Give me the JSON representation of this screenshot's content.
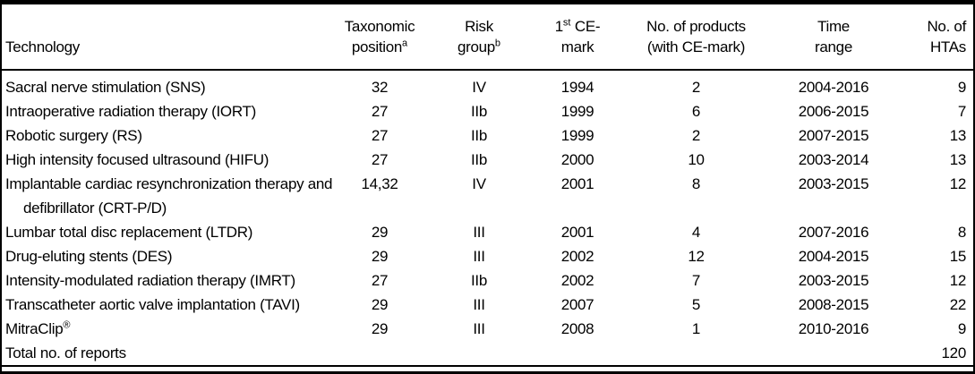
{
  "table": {
    "header": {
      "technology": "Technology",
      "taxonomic_line1": "Taxonomic",
      "taxonomic_line2": "position",
      "taxonomic_sup": "a",
      "risk_line1": "Risk",
      "risk_line2": "group",
      "risk_sup": "b",
      "ce_num": "1",
      "ce_sup": "st",
      "ce_line1_rest": " CE-",
      "ce_line2": "mark",
      "products_line1": "No. of products",
      "products_line2": "(with CE-mark)",
      "time_line1": "Time",
      "time_line2": "range",
      "htas_line1": "No. of",
      "htas_line2": "HTAs"
    },
    "rows": [
      {
        "technology": "Sacral nerve stimulation (SNS)",
        "taxonomic_position": "32",
        "risk_group": "IV",
        "first_ce_mark": "1994",
        "products": "2",
        "time_range": "2004-2016",
        "htas": "9"
      },
      {
        "technology": "Intraoperative radiation therapy (IORT)",
        "taxonomic_position": "27",
        "risk_group": "IIb",
        "first_ce_mark": "1999",
        "products": "6",
        "time_range": "2006-2015",
        "htas": "7"
      },
      {
        "technology": "Robotic surgery (RS)",
        "taxonomic_position": "27",
        "risk_group": "IIb",
        "first_ce_mark": "1999",
        "products": "2",
        "time_range": "2007-2015",
        "htas": "13"
      },
      {
        "technology": "High intensity focused ultrasound (HIFU)",
        "taxonomic_position": "27",
        "risk_group": "IIb",
        "first_ce_mark": "2000",
        "products": "10",
        "time_range": "2003-2014",
        "htas": "13"
      },
      {
        "technology": "Implantable cardiac resynchronization therapy and",
        "technology_line2": "defibrillator (CRT-P/D)",
        "taxonomic_position": "14,32",
        "risk_group": "IV",
        "first_ce_mark": "2001",
        "products": "8",
        "time_range": "2003-2015",
        "htas": "12"
      },
      {
        "technology": "Lumbar total disc replacement (LTDR)",
        "taxonomic_position": "29",
        "risk_group": "III",
        "first_ce_mark": "2001",
        "products": "4",
        "time_range": "2007-2016",
        "htas": "8"
      },
      {
        "technology": "Drug-eluting stents (DES)",
        "taxonomic_position": "29",
        "risk_group": "III",
        "first_ce_mark": "2002",
        "products": "12",
        "time_range": "2004-2015",
        "htas": "15"
      },
      {
        "technology": "Intensity-modulated radiation therapy (IMRT)",
        "taxonomic_position": "27",
        "risk_group": "IIb",
        "first_ce_mark": "2002",
        "products": "7",
        "time_range": "2003-2015",
        "htas": "12"
      },
      {
        "technology": "Transcatheter aortic valve implantation (TAVI)",
        "taxonomic_position": "29",
        "risk_group": "III",
        "first_ce_mark": "2007",
        "products": "5",
        "time_range": "2008-2015",
        "htas": "22"
      },
      {
        "technology": "MitraClip",
        "technology_sup": "®",
        "taxonomic_position": "29",
        "risk_group": "III",
        "first_ce_mark": "2008",
        "products": "1",
        "time_range": "2010-2016",
        "htas": "9"
      }
    ],
    "total": {
      "label": "Total no. of reports",
      "htas": "120"
    }
  }
}
